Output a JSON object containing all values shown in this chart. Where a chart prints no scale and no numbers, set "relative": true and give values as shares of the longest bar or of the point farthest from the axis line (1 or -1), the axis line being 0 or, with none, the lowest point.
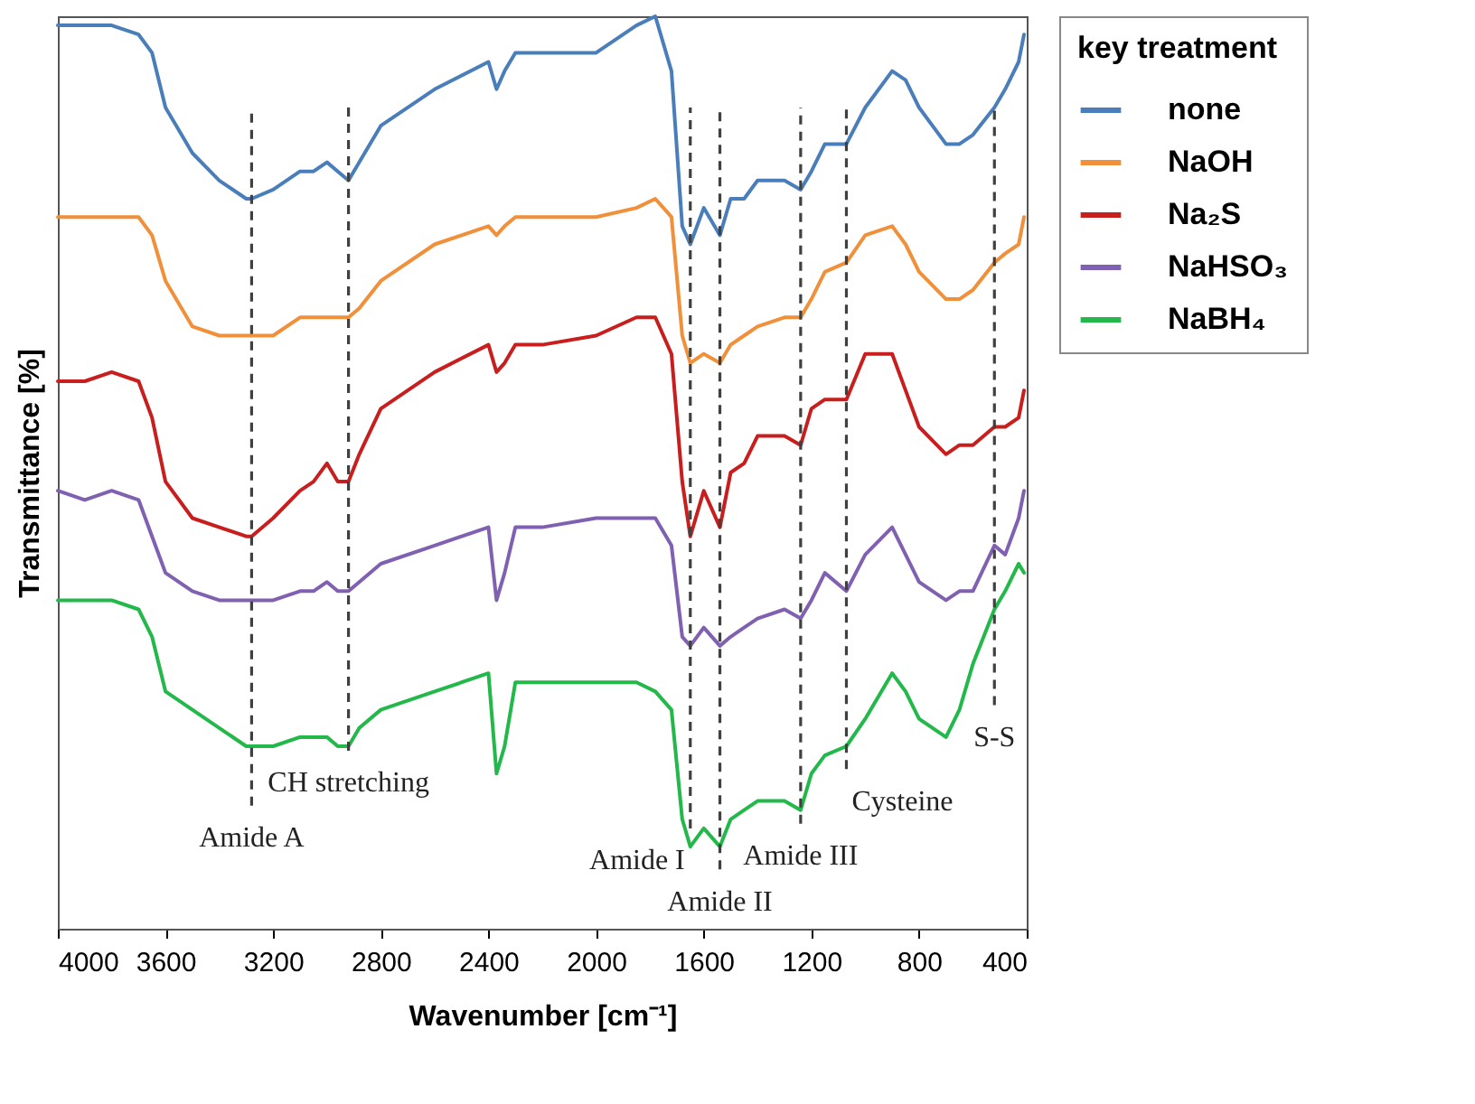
{
  "chart_data": {
    "type": "line",
    "relative": true,
    "xlabel": "Wavenumber [cm⁻¹]",
    "ylabel": "Transmittance [%]",
    "legend_title": "key treatment",
    "legend": "right",
    "tick_labels": "x",
    "grid": false,
    "xlim": [
      4000,
      400
    ],
    "xticks": [
      4000,
      3600,
      3200,
      2800,
      2400,
      2000,
      1600,
      1200,
      800,
      400
    ],
    "x": [
      4000,
      3900,
      3800,
      3700,
      3650,
      3600,
      3500,
      3400,
      3300,
      3280,
      3200,
      3100,
      3050,
      3000,
      2960,
      2920,
      2880,
      2800,
      2600,
      2400,
      2370,
      2340,
      2300,
      2200,
      2000,
      1850,
      1780,
      1720,
      1680,
      1650,
      1600,
      1540,
      1500,
      1450,
      1400,
      1300,
      1240,
      1200,
      1150,
      1070,
      1000,
      900,
      850,
      800,
      700,
      650,
      600,
      520,
      480,
      430,
      410
    ],
    "series": [
      {
        "name": "none",
        "color": "#4a7ebb",
        "values": [
          0.99,
          0.99,
          0.99,
          0.98,
          0.96,
          0.9,
          0.85,
          0.82,
          0.8,
          0.8,
          0.81,
          0.83,
          0.83,
          0.84,
          0.83,
          0.82,
          0.84,
          0.88,
          0.92,
          0.95,
          0.92,
          0.94,
          0.96,
          0.96,
          0.96,
          0.99,
          1.0,
          0.94,
          0.77,
          0.75,
          0.79,
          0.76,
          0.8,
          0.8,
          0.82,
          0.82,
          0.81,
          0.83,
          0.86,
          0.86,
          0.9,
          0.94,
          0.93,
          0.9,
          0.86,
          0.86,
          0.87,
          0.9,
          0.92,
          0.95,
          0.98
        ]
      },
      {
        "name": "NaOH",
        "color": "#f0903a",
        "values": [
          0.78,
          0.78,
          0.78,
          0.78,
          0.76,
          0.71,
          0.66,
          0.65,
          0.65,
          0.65,
          0.65,
          0.67,
          0.67,
          0.67,
          0.67,
          0.67,
          0.68,
          0.71,
          0.75,
          0.77,
          0.76,
          0.77,
          0.78,
          0.78,
          0.78,
          0.79,
          0.8,
          0.78,
          0.65,
          0.62,
          0.63,
          0.62,
          0.64,
          0.65,
          0.66,
          0.67,
          0.67,
          0.69,
          0.72,
          0.73,
          0.76,
          0.77,
          0.75,
          0.72,
          0.69,
          0.69,
          0.7,
          0.73,
          0.74,
          0.75,
          0.78
        ]
      },
      {
        "name": "Na₂S",
        "color": "#c81e1e",
        "values": [
          0.6,
          0.6,
          0.61,
          0.6,
          0.56,
          0.49,
          0.45,
          0.44,
          0.43,
          0.43,
          0.45,
          0.48,
          0.49,
          0.51,
          0.49,
          0.49,
          0.52,
          0.57,
          0.61,
          0.64,
          0.61,
          0.62,
          0.64,
          0.64,
          0.65,
          0.67,
          0.67,
          0.63,
          0.49,
          0.43,
          0.48,
          0.44,
          0.5,
          0.51,
          0.54,
          0.54,
          0.53,
          0.57,
          0.58,
          0.58,
          0.63,
          0.63,
          0.59,
          0.55,
          0.52,
          0.53,
          0.53,
          0.55,
          0.55,
          0.56,
          0.59
        ]
      },
      {
        "name": "NaHSO₃",
        "color": "#8060b0",
        "values": [
          0.48,
          0.47,
          0.48,
          0.47,
          0.43,
          0.39,
          0.37,
          0.36,
          0.36,
          0.36,
          0.36,
          0.37,
          0.37,
          0.38,
          0.37,
          0.37,
          0.38,
          0.4,
          0.42,
          0.44,
          0.36,
          0.39,
          0.44,
          0.44,
          0.45,
          0.45,
          0.45,
          0.42,
          0.32,
          0.31,
          0.33,
          0.31,
          0.32,
          0.33,
          0.34,
          0.35,
          0.34,
          0.36,
          0.39,
          0.37,
          0.41,
          0.44,
          0.41,
          0.38,
          0.36,
          0.37,
          0.37,
          0.42,
          0.41,
          0.45,
          0.48
        ]
      },
      {
        "name": "NaBH₄",
        "color": "#22b84a",
        "values": [
          0.36,
          0.36,
          0.36,
          0.35,
          0.32,
          0.26,
          0.24,
          0.22,
          0.2,
          0.2,
          0.2,
          0.21,
          0.21,
          0.21,
          0.2,
          0.2,
          0.22,
          0.24,
          0.26,
          0.28,
          0.17,
          0.2,
          0.27,
          0.27,
          0.27,
          0.27,
          0.26,
          0.24,
          0.12,
          0.09,
          0.11,
          0.09,
          0.12,
          0.13,
          0.14,
          0.14,
          0.13,
          0.17,
          0.19,
          0.2,
          0.23,
          0.28,
          0.26,
          0.23,
          0.21,
          0.24,
          0.29,
          0.35,
          0.37,
          0.4,
          0.39
        ]
      }
    ],
    "ref_lines": [
      {
        "axis": "x",
        "value": 3280,
        "label": "Amide A",
        "color": "#404040",
        "line_style": "dashed"
      },
      {
        "axis": "x",
        "value": 2920,
        "label": "CH stretching",
        "color": "#404040",
        "line_style": "dashed"
      },
      {
        "axis": "x",
        "value": 1650,
        "label": "Amide I",
        "color": "#404040",
        "line_style": "dashed"
      },
      {
        "axis": "x",
        "value": 1540,
        "label": "Amide II",
        "color": "#404040",
        "line_style": "dashed"
      },
      {
        "axis": "x",
        "value": 1240,
        "label": "Amide III",
        "color": "#404040",
        "line_style": "dashed"
      },
      {
        "axis": "x",
        "value": 1070,
        "label": "Cysteine",
        "color": "#404040",
        "line_style": "dashed"
      },
      {
        "axis": "x",
        "value": 520,
        "label": "S-S",
        "color": "#404040",
        "line_style": "dashed"
      }
    ]
  }
}
